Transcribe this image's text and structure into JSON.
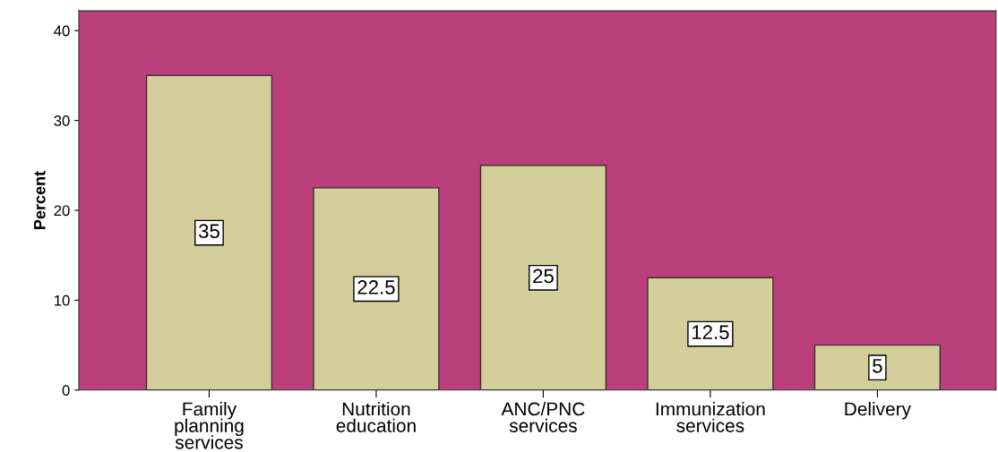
{
  "chart_data": {
    "type": "bar",
    "ylabel": "Percent",
    "categories": [
      "Family\nplanning\nservices",
      "Nutrition\neducation",
      "ANC/PNC\nservices",
      "Immunization\nservices",
      "Delivery"
    ],
    "values": [
      35,
      22.5,
      25,
      12.5,
      5
    ],
    "color": "#d4cf9a",
    "ylim": [
      0,
      42.2
    ],
    "yticks": [
      0,
      10,
      20,
      30,
      40
    ],
    "grid": false,
    "data_labels": true
  }
}
